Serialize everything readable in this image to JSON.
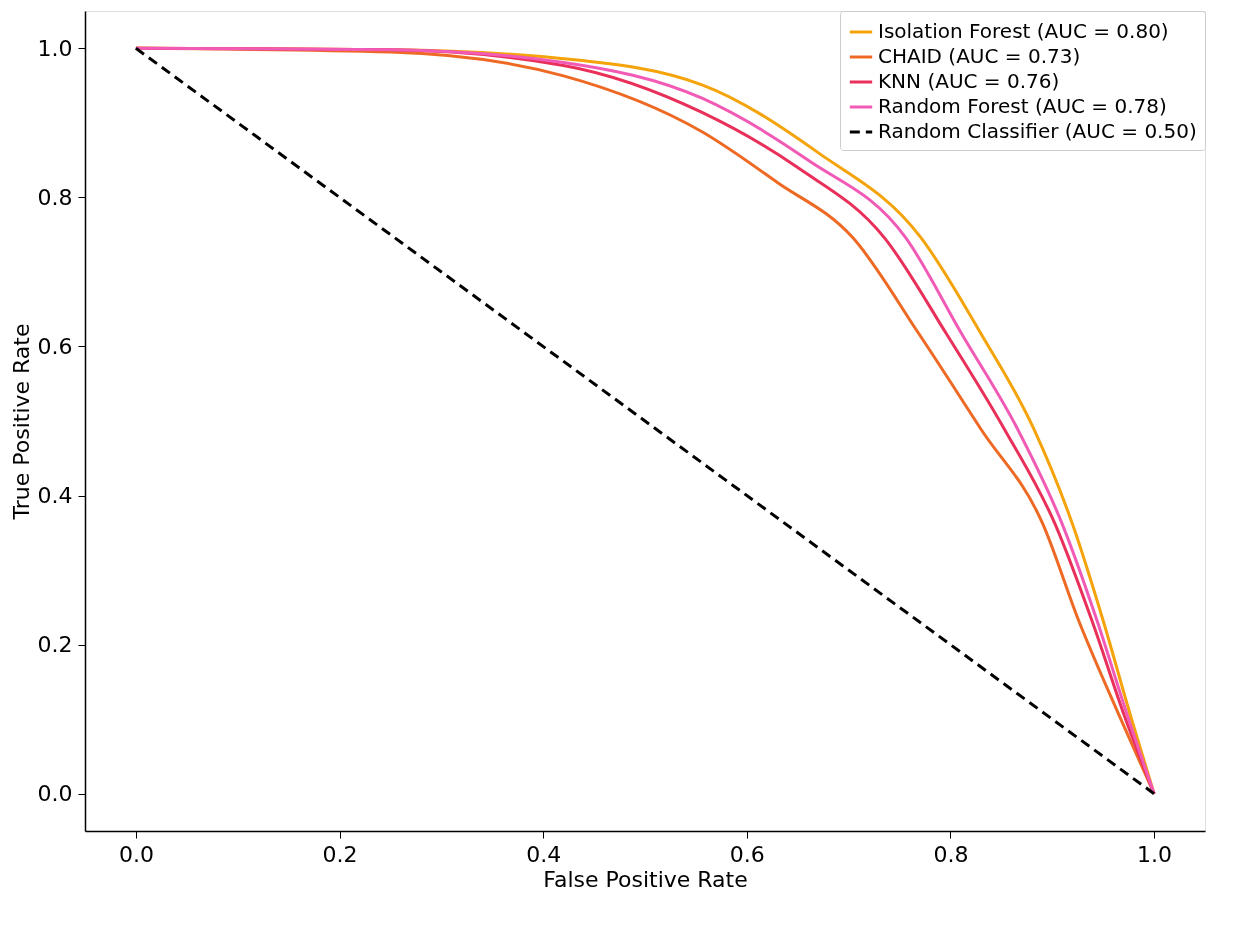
{
  "chart_data": {
    "type": "line",
    "xlabel": "False Positive Rate",
    "ylabel": "True Positive Rate",
    "xlim": [
      -0.05,
      1.05
    ],
    "ylim": [
      -0.05,
      1.05
    ],
    "xticks": [
      {
        "value": 0,
        "label": "0.0"
      },
      {
        "value": 0.2,
        "label": "0.2"
      },
      {
        "value": 0.4,
        "label": "0.4"
      },
      {
        "value": 0.6,
        "label": "0.6"
      },
      {
        "value": 0.8,
        "label": "0.8"
      },
      {
        "value": 1,
        "label": "1.0"
      }
    ],
    "yticks": [
      {
        "value": 0,
        "label": "0.0"
      },
      {
        "value": 0.2,
        "label": "0.2"
      },
      {
        "value": 0.4,
        "label": "0.4"
      },
      {
        "value": 0.6,
        "label": "0.6"
      },
      {
        "value": 0.8,
        "label": "0.8"
      },
      {
        "value": 1,
        "label": "1.0"
      }
    ],
    "grid": false,
    "legend": "top right",
    "marker": "none",
    "series": [
      {
        "name": "Isolation Forest (AUC = 0.80)",
        "color": "#f5a30a",
        "line_style": "solid",
        "x": [
          0,
          0.25,
          0.42,
          0.556,
          0.67,
          0.771,
          0.83,
          0.882,
          0.92,
          0.95,
          0.977,
          1
        ],
        "values": [
          1,
          0.998,
          0.986,
          0.951,
          0.86,
          0.746,
          0.617,
          0.489,
          0.361,
          0.232,
          0.104,
          0
        ]
      },
      {
        "name": "CHAID (AUC = 0.73)",
        "color": "#ee6a24",
        "line_style": "solid",
        "x": [
          0,
          0.25,
          0.42,
          0.556,
          0.63,
          0.704,
          0.769,
          0.83,
          0.891,
          0.926,
          0.966,
          1
        ],
        "values": [
          1,
          0.995,
          0.963,
          0.888,
          0.82,
          0.746,
          0.617,
          0.489,
          0.361,
          0.232,
          0.104,
          0
        ]
      },
      {
        "name": "KNN (AUC = 0.76)",
        "color": "#e8305a",
        "line_style": "solid",
        "x": [
          0,
          0.25,
          0.42,
          0.556,
          0.65,
          0.735,
          0.796,
          0.853,
          0.903,
          0.939,
          0.971,
          1
        ],
        "values": [
          1,
          0.998,
          0.977,
          0.914,
          0.84,
          0.746,
          0.617,
          0.489,
          0.361,
          0.232,
          0.104,
          0
        ]
      },
      {
        "name": "Random Forest (AUC = 0.78)",
        "color": "#f15bb5",
        "line_style": "solid",
        "x": [
          0,
          0.25,
          0.42,
          0.556,
          0.66,
          0.756,
          0.811,
          0.866,
          0.91,
          0.944,
          0.974,
          1
        ],
        "values": [
          1,
          0.998,
          0.981,
          0.933,
          0.85,
          0.746,
          0.617,
          0.489,
          0.361,
          0.232,
          0.104,
          0
        ]
      },
      {
        "name": "Random Classifier (AUC = 0.50)",
        "color": "#000000",
        "line_style": "dashed",
        "x": [
          0,
          1
        ],
        "values": [
          1,
          0
        ]
      }
    ]
  }
}
